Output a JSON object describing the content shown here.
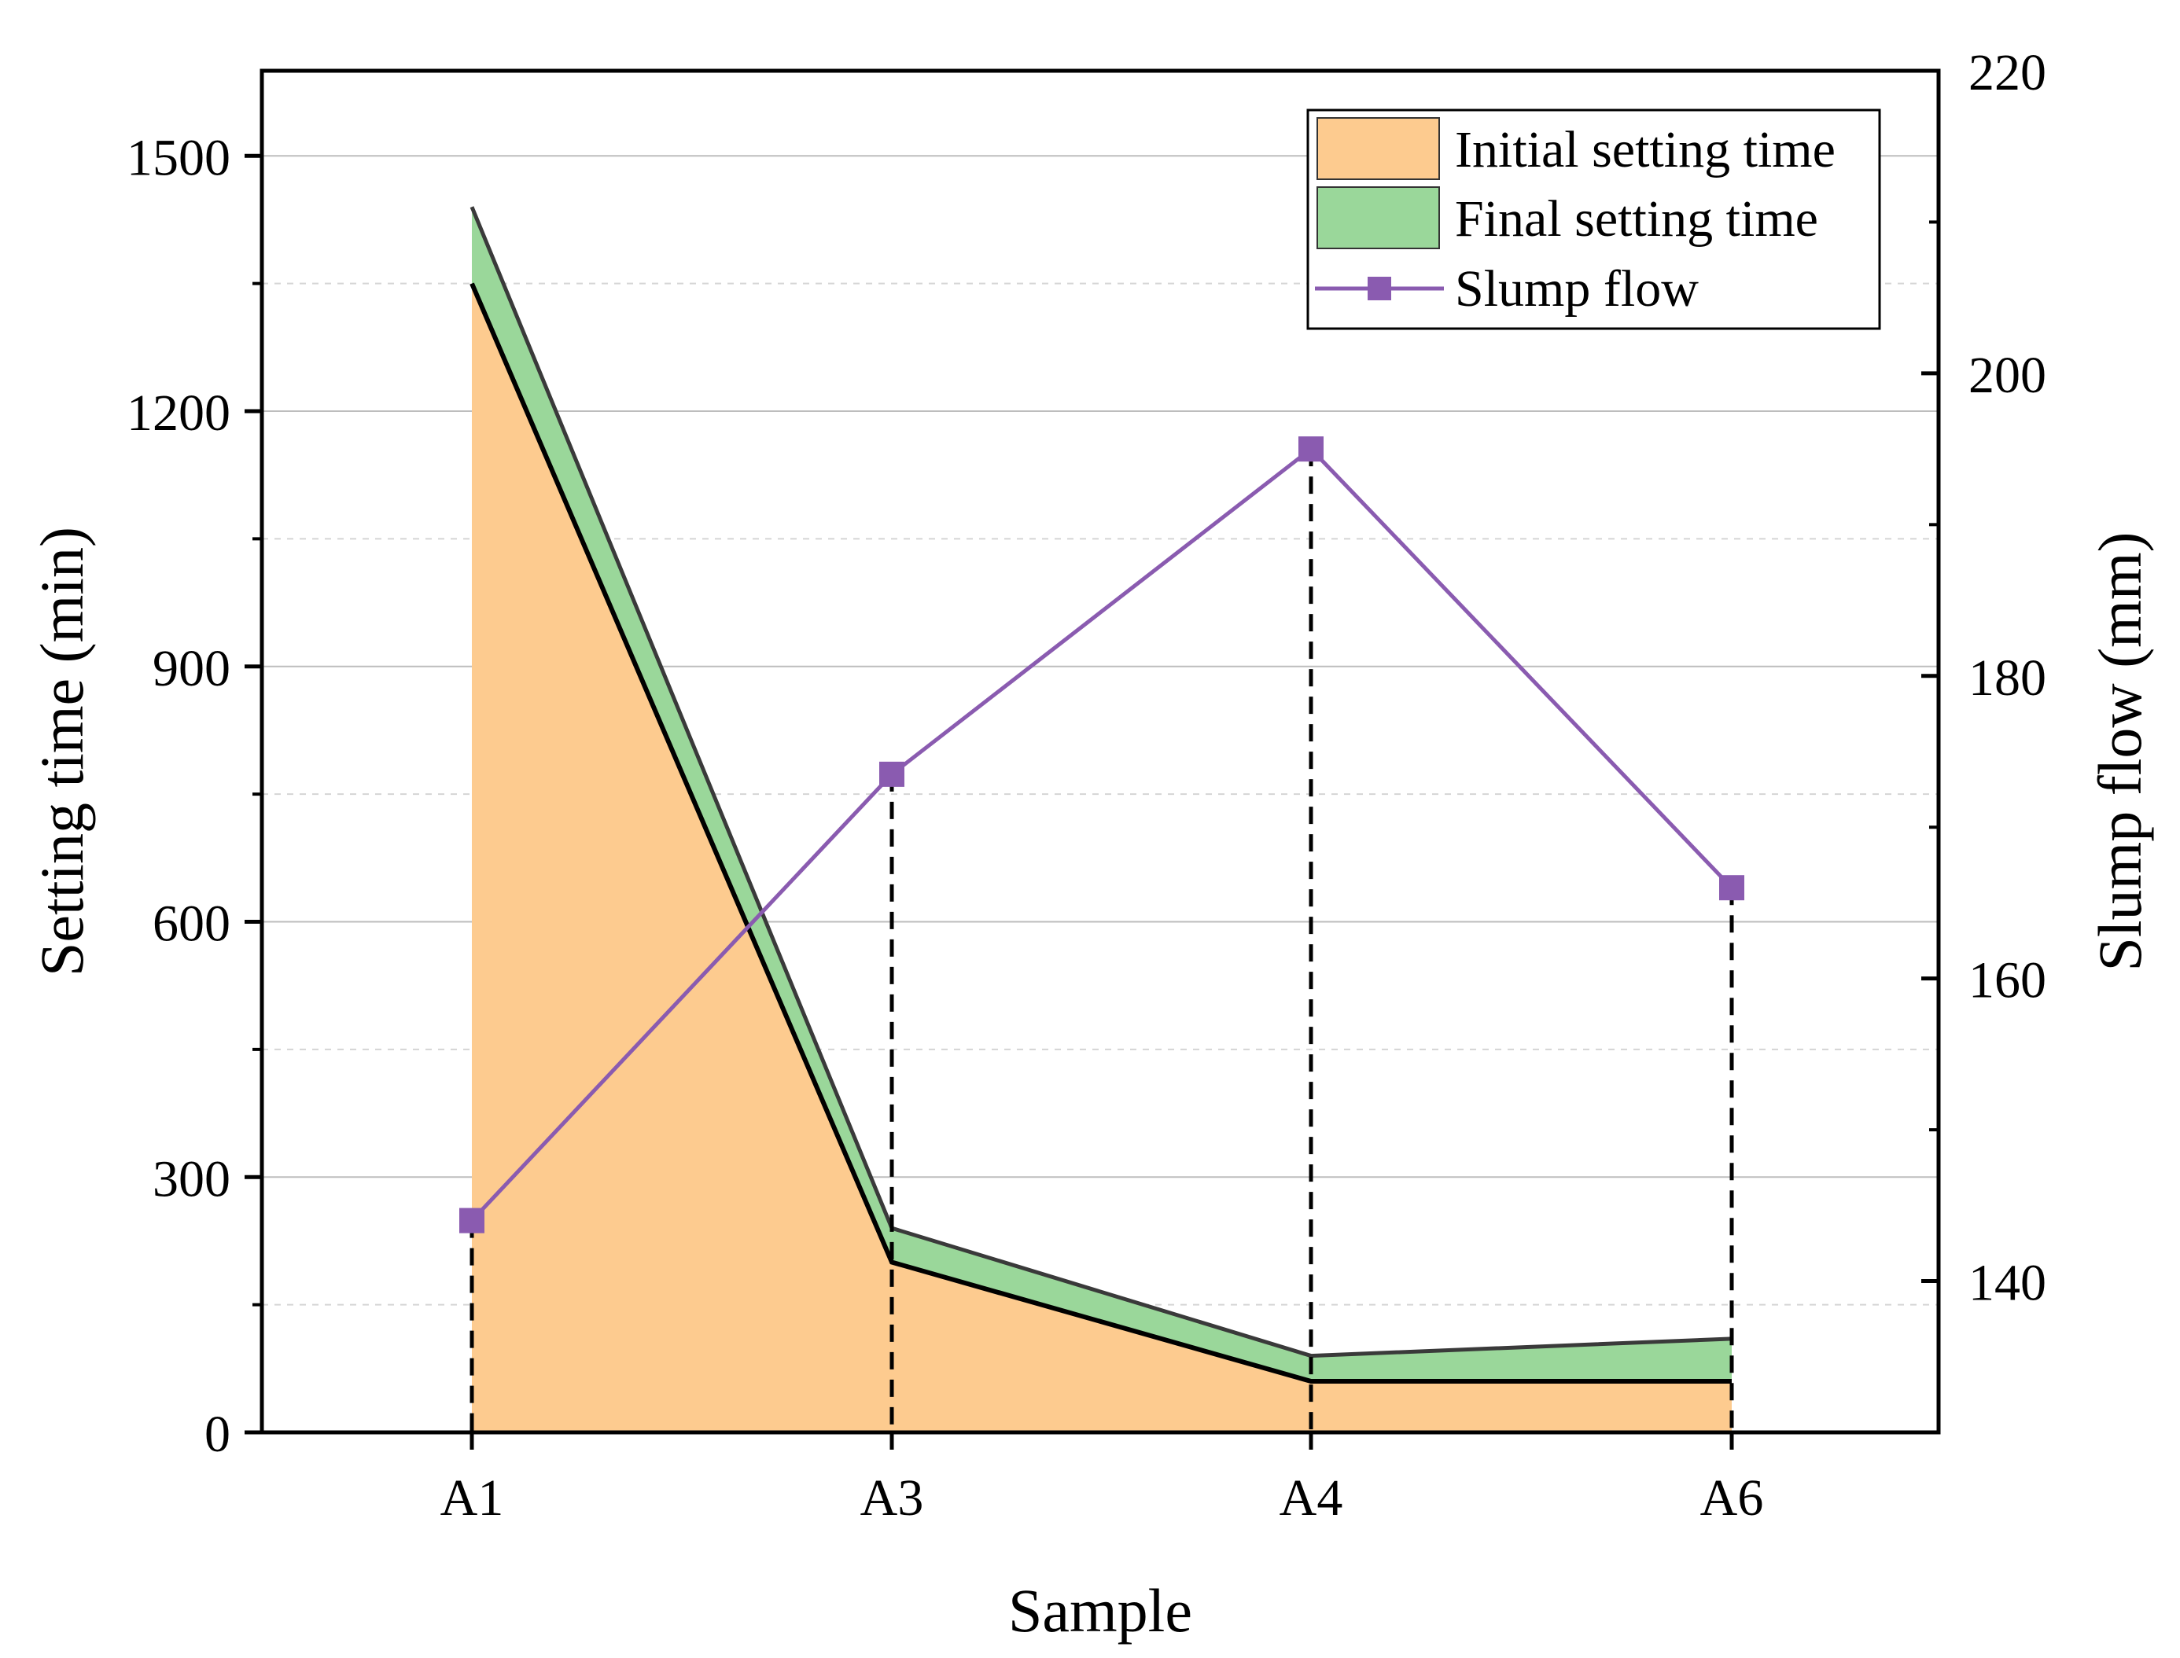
{
  "chart_data": {
    "type": "area",
    "categories": [
      "A1",
      "A3",
      "A4",
      "A6"
    ],
    "xlabel": "Sample",
    "ylabel": "Setting time (min)",
    "y2label": "Slump flow (mm)",
    "ylim": [
      0,
      1600
    ],
    "y2lim": [
      130,
      220
    ],
    "yticks": [
      0,
      300,
      600,
      900,
      1200,
      1500
    ],
    "y2ticks": [
      140,
      160,
      180,
      200,
      220
    ],
    "series": [
      {
        "name": "Initial setting time",
        "axis": "left",
        "kind": "area",
        "color": "#fdcb8f",
        "values": [
          1350,
          200,
          60,
          60
        ]
      },
      {
        "name": "Final setting time",
        "axis": "left",
        "kind": "area",
        "color": "#9ad79a",
        "values": [
          1440,
          240,
          90,
          110
        ]
      },
      {
        "name": "Slump flow",
        "axis": "right",
        "kind": "line",
        "marker": "square",
        "color": "#8a5bb0",
        "values": [
          144,
          173.5,
          195,
          166
        ]
      }
    ],
    "legend_position": "top-right",
    "grid": true
  }
}
